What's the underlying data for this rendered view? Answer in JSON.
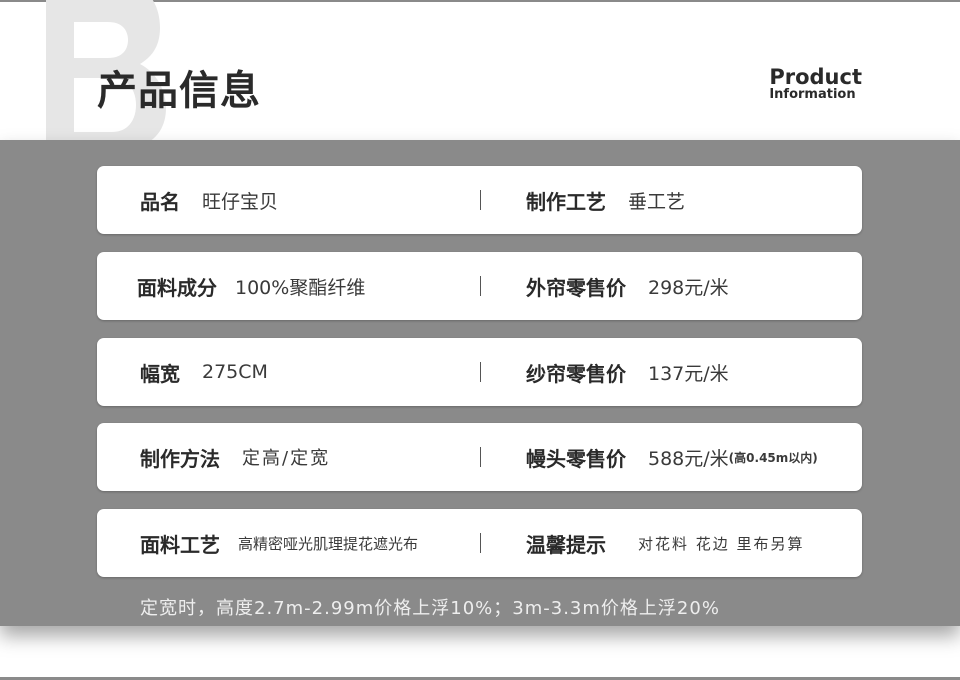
{
  "header": {
    "watermark_letter": "B",
    "title": "产品信息",
    "en_line1": "Product",
    "en_line2": "Information"
  },
  "rows": [
    {
      "left_key": "品名",
      "left_value": "旺仔宝贝",
      "right_key": "制作工艺",
      "right_value": "垂工艺"
    },
    {
      "left_key": "面料成分",
      "left_value": "100%聚酯纤维",
      "right_key": "外帘零售价",
      "right_value": "298元/米"
    },
    {
      "left_key": "幅宽",
      "left_value": "275CM",
      "right_key": "纱帘零售价",
      "right_value": "137元/米"
    },
    {
      "left_key": "制作方法",
      "left_value": "定高/定宽",
      "right_key": "幔头零售价",
      "right_value": "588元/米",
      "right_note": "(高0.45m以内)"
    },
    {
      "left_key": "面料工艺",
      "left_value": "高精密哑光肌理提花遮光布",
      "right_key": "温馨提示",
      "right_value": "对花料 花边 里布另算"
    }
  ],
  "note": "定宽时，高度2.7m-2.99m价格上浮10%；3m-3.3m价格上浮20%",
  "colors": {
    "band": "#8a8a8a",
    "card": "#ffffff",
    "watermark": "#e6e6e6"
  }
}
